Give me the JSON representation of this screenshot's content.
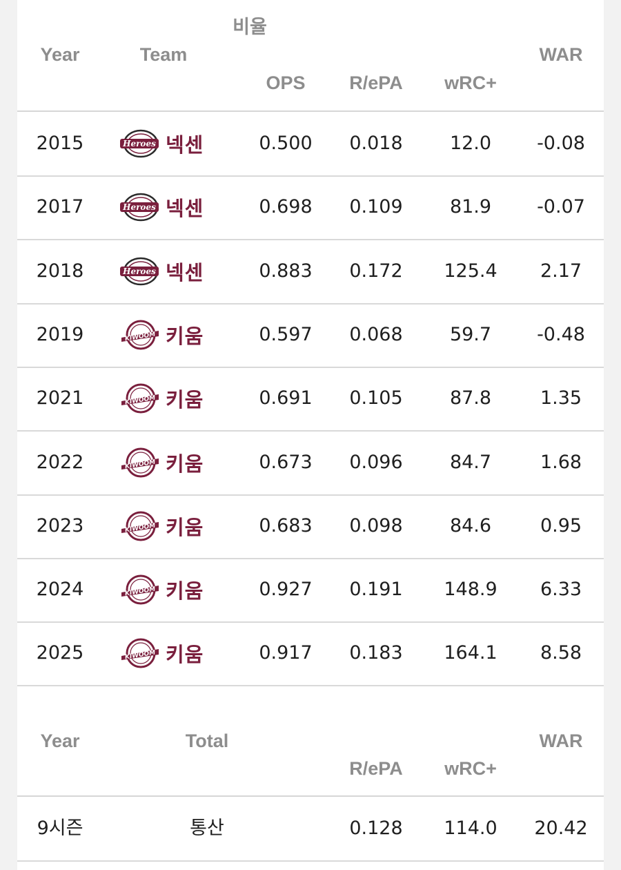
{
  "header": {
    "year": "Year",
    "team": "Team",
    "group": "비율",
    "ops": "OPS",
    "repa": "R/ePA",
    "wrc": "wRC+",
    "war": "WAR"
  },
  "rows": [
    {
      "year": "2015",
      "team": "넥센",
      "logo": "heroes-logo",
      "ops": "0.500",
      "repa": "0.018",
      "wrc": "12.0",
      "war": "-0.08"
    },
    {
      "year": "2017",
      "team": "넥센",
      "logo": "heroes-logo",
      "ops": "0.698",
      "repa": "0.109",
      "wrc": "81.9",
      "war": "-0.07"
    },
    {
      "year": "2018",
      "team": "넥센",
      "logo": "heroes-logo",
      "ops": "0.883",
      "repa": "0.172",
      "wrc": "125.4",
      "war": "2.17"
    },
    {
      "year": "2019",
      "team": "키움",
      "logo": "kiwoom-logo",
      "ops": "0.597",
      "repa": "0.068",
      "wrc": "59.7",
      "war": "-0.48"
    },
    {
      "year": "2021",
      "team": "키움",
      "logo": "kiwoom-logo",
      "ops": "0.691",
      "repa": "0.105",
      "wrc": "87.8",
      "war": "1.35"
    },
    {
      "year": "2022",
      "team": "키움",
      "logo": "kiwoom-logo",
      "ops": "0.673",
      "repa": "0.096",
      "wrc": "84.7",
      "war": "1.68"
    },
    {
      "year": "2023",
      "team": "키움",
      "logo": "kiwoom-logo",
      "ops": "0.683",
      "repa": "0.098",
      "wrc": "84.6",
      "war": "0.95"
    },
    {
      "year": "2024",
      "team": "키움",
      "logo": "kiwoom-logo",
      "ops": "0.927",
      "repa": "0.191",
      "wrc": "148.9",
      "war": "6.33"
    },
    {
      "year": "2025",
      "team": "키움",
      "logo": "kiwoom-logo",
      "ops": "0.917",
      "repa": "0.183",
      "wrc": "164.1",
      "war": "8.58"
    }
  ],
  "total_header": {
    "year": "Year",
    "total": "Total",
    "repa": "R/ePA",
    "wrc": "wRC+",
    "war": "WAR"
  },
  "total": {
    "seasons": "9시즌",
    "label": "통산",
    "repa": "0.128",
    "wrc": "114.0",
    "war": "20.42"
  },
  "colors": {
    "team_text": "#7a1f3d",
    "header_text": "#8d8d8d",
    "divider": "#d6d6d6"
  }
}
